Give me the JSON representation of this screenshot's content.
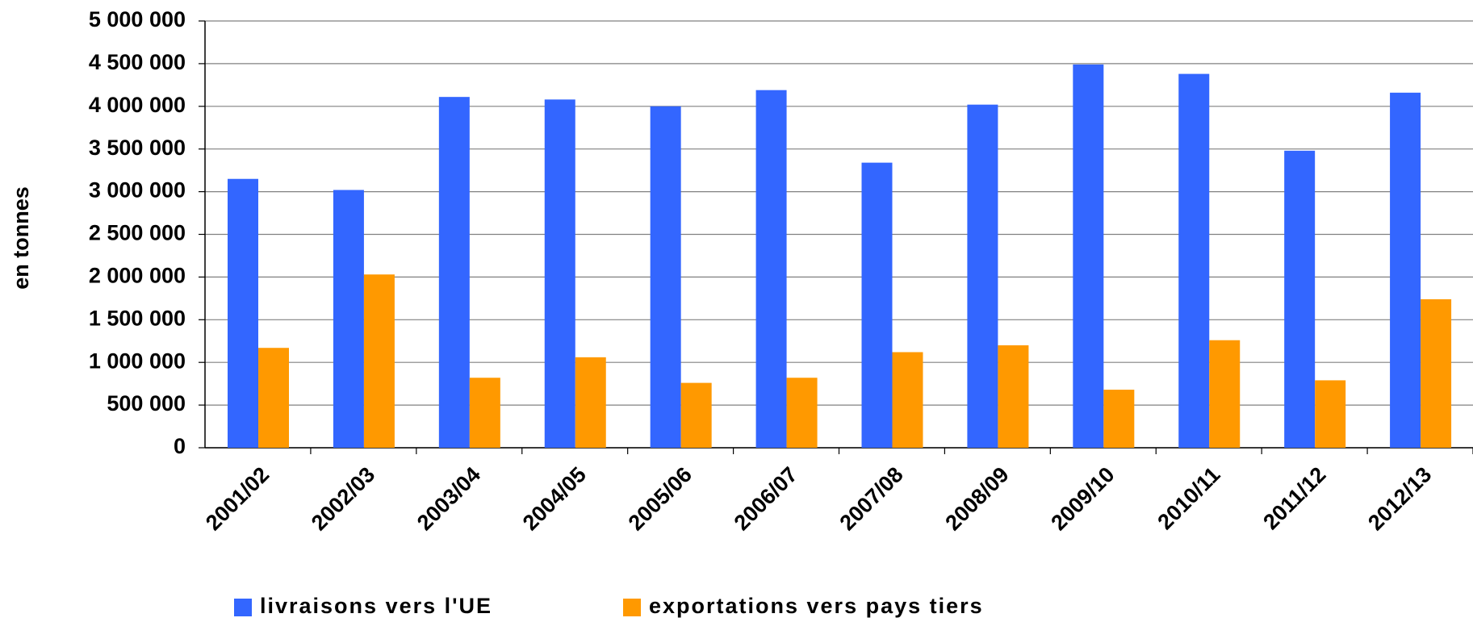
{
  "chart_data": {
    "type": "bar",
    "y_label": "en tonnes",
    "categories": [
      "2001/02",
      "2002/03",
      "2003/04",
      "2004/05",
      "2005/06",
      "2006/07",
      "2007/08",
      "2008/09",
      "2009/10",
      "2010/11",
      "2011/12",
      "2012/13"
    ],
    "series": [
      {
        "name": "livraisons vers l'UE",
        "color": "#3366ff",
        "values": [
          3150000,
          3020000,
          4110000,
          4080000,
          4000000,
          4190000,
          3340000,
          4020000,
          4490000,
          4380000,
          3480000,
          4160000
        ]
      },
      {
        "name": "exportations vers pays tiers",
        "color": "#ff9900",
        "values": [
          1170000,
          2030000,
          820000,
          1060000,
          760000,
          820000,
          1120000,
          1200000,
          680000,
          1260000,
          790000,
          1740000
        ]
      }
    ],
    "ylim": [
      0,
      5000000
    ],
    "yticks": [
      0,
      {
        "value": 500000,
        "label": "500 000"
      },
      {
        "value": 1000000,
        "label": "1 000 000"
      },
      {
        "value": 1500000,
        "label": "1 500 000"
      },
      {
        "value": 2000000,
        "label": "2 000 000"
      },
      {
        "value": 2500000,
        "label": "2 500 000"
      },
      {
        "value": 3000000,
        "label": "3 000 000"
      },
      {
        "value": 3500000,
        "label": "3 500 000"
      },
      {
        "value": 4000000,
        "label": "4 000 000"
      },
      {
        "value": 4500000,
        "label": "4 500 000"
      },
      {
        "value": 5000000,
        "label": "5 000 000"
      }
    ],
    "grid": true
  }
}
